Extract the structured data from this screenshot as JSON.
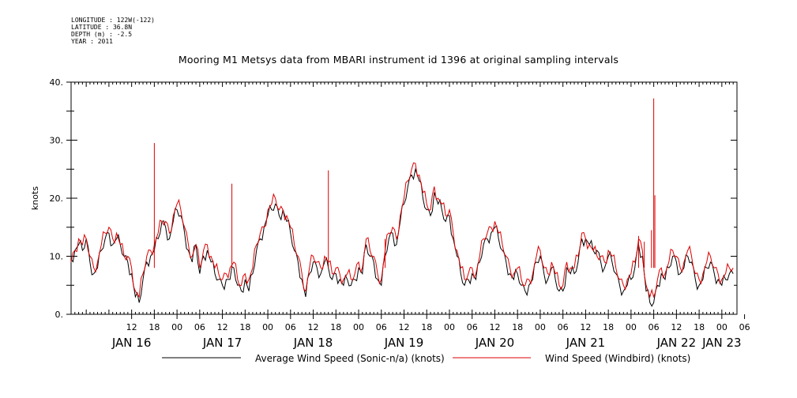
{
  "header": {
    "longitude": "LONGITUDE : 122W(-122)",
    "latitude": "LATITUDE : 36.8N",
    "depth": "DEPTH (m) : -2.5",
    "year": "YEAR : 2011"
  },
  "chart_data": {
    "type": "line",
    "title": "Mooring M1 Metsys data from MBARI instrument id 1396 at original sampling intervals",
    "ylabel": "knots",
    "xlabel": "",
    "ylim": [
      0,
      40
    ],
    "yticks": [
      "0.",
      "10.",
      "20.",
      "30.",
      "40."
    ],
    "xlim_hours": [
      -4,
      172
    ],
    "x_hour_ticks": [
      {
        "h": 12,
        "label": "12"
      },
      {
        "h": 18,
        "label": "18"
      },
      {
        "h": 24,
        "label": "00"
      },
      {
        "h": 30,
        "label": "06"
      },
      {
        "h": 36,
        "label": "12"
      },
      {
        "h": 42,
        "label": "18"
      },
      {
        "h": 48,
        "label": "00"
      },
      {
        "h": 54,
        "label": "06"
      },
      {
        "h": 60,
        "label": "12"
      },
      {
        "h": 66,
        "label": "18"
      },
      {
        "h": 72,
        "label": "00"
      },
      {
        "h": 78,
        "label": "06"
      },
      {
        "h": 84,
        "label": "12"
      },
      {
        "h": 90,
        "label": "18"
      },
      {
        "h": 96,
        "label": "00"
      },
      {
        "h": 102,
        "label": "06"
      },
      {
        "h": 108,
        "label": "12"
      },
      {
        "h": 114,
        "label": "18"
      },
      {
        "h": 120,
        "label": "00"
      },
      {
        "h": 126,
        "label": "06"
      },
      {
        "h": 132,
        "label": "12"
      },
      {
        "h": 138,
        "label": "18"
      },
      {
        "h": 144,
        "label": "00"
      },
      {
        "h": 150,
        "label": "06"
      },
      {
        "h": 156,
        "label": "12"
      },
      {
        "h": 162,
        "label": "18"
      },
      {
        "h": 168,
        "label": "00"
      },
      {
        "h": 174,
        "label": "06"
      }
    ],
    "day_labels": [
      {
        "h": 12,
        "label": "JAN 16"
      },
      {
        "h": 36,
        "label": "JAN 17"
      },
      {
        "h": 60,
        "label": "JAN 18"
      },
      {
        "h": 84,
        "label": "JAN 19"
      },
      {
        "h": 108,
        "label": "JAN 20"
      },
      {
        "h": 132,
        "label": "JAN 21"
      },
      {
        "h": 156,
        "label": "JAN 22"
      },
      {
        "h": 168,
        "label": "JAN 23"
      }
    ],
    "series": [
      {
        "name": "Average Wind Speed (Sonic-n/a) (knots)",
        "color": "#000000",
        "x": [
          -4,
          -3,
          -2,
          -1,
          0,
          1,
          2,
          3,
          4,
          5,
          6,
          7,
          8,
          9,
          10,
          11,
          12,
          13,
          14,
          15,
          16,
          17,
          18,
          19,
          20,
          21,
          22,
          23,
          24,
          25,
          26,
          27,
          28,
          29,
          30,
          31,
          32,
          33,
          34,
          35,
          36,
          37,
          38,
          39,
          40,
          41,
          42,
          43,
          44,
          45,
          46,
          47,
          48,
          49,
          50,
          51,
          52,
          53,
          54,
          55,
          56,
          57,
          58,
          59,
          60,
          61,
          62,
          63,
          64,
          65,
          66,
          67,
          68,
          69,
          70,
          71,
          72,
          73,
          74,
          75,
          76,
          77,
          78,
          79,
          80,
          81,
          82,
          83,
          84,
          85,
          86,
          87,
          88,
          89,
          90,
          91,
          92,
          93,
          94,
          95,
          96,
          97,
          98,
          99,
          100,
          101,
          102,
          103,
          104,
          105,
          106,
          107,
          108,
          109,
          110,
          111,
          112,
          113,
          114,
          115,
          116,
          117,
          118,
          119,
          120,
          121,
          122,
          123,
          124,
          125,
          126,
          127,
          128,
          129,
          130,
          131,
          132,
          133,
          134,
          135,
          136,
          137,
          138,
          139,
          140,
          141,
          142,
          143,
          144,
          145,
          146,
          147,
          148,
          149,
          150,
          151,
          152,
          153,
          154,
          155,
          156,
          157,
          158,
          159,
          160,
          161,
          162,
          163,
          164,
          165,
          166,
          167,
          168,
          169,
          170,
          171
        ],
        "y": [
          9.5,
          11,
          12,
          11,
          13,
          9,
          7,
          8,
          11,
          13,
          14,
          12,
          13,
          12,
          10,
          9,
          7,
          3,
          2,
          6,
          9,
          10,
          11,
          13,
          16,
          15,
          13,
          16,
          18,
          17,
          14,
          11,
          9,
          12,
          7,
          10,
          11,
          9,
          7,
          6,
          5,
          6,
          6,
          8,
          5,
          4,
          6,
          4,
          7,
          11,
          13,
          15,
          17,
          18,
          19,
          17,
          18,
          16,
          14,
          11,
          9,
          6,
          3,
          7,
          9,
          8,
          7,
          9,
          8,
          6,
          7,
          6,
          5,
          6,
          5,
          6,
          8,
          7,
          12,
          10,
          9,
          6,
          5,
          10,
          13,
          14,
          12,
          16,
          19,
          22,
          24,
          25,
          23,
          20,
          18,
          17,
          21,
          19,
          18,
          16,
          17,
          13,
          10,
          7,
          5,
          6,
          7,
          6,
          9,
          12,
          13,
          14,
          15,
          13,
          11,
          9,
          7,
          6,
          7,
          5,
          4,
          5,
          6,
          9,
          10,
          7,
          6,
          8,
          6,
          4,
          4,
          8,
          7,
          7,
          9,
          13,
          13,
          12,
          11,
          11,
          9,
          8,
          10,
          9,
          7,
          5,
          4,
          5,
          6,
          8,
          12,
          10,
          4,
          2,
          2,
          5,
          7,
          6,
          8,
          10,
          9,
          7,
          8,
          10,
          9,
          6,
          5,
          6,
          8,
          9,
          7,
          6,
          5,
          6,
          7,
          7
        ],
        "spikes": []
      },
      {
        "name": "Wind Speed (Windbird) (knots)",
        "color": "#dd0000",
        "x": [
          -4,
          -3,
          -2,
          -1,
          0,
          1,
          2,
          3,
          4,
          5,
          6,
          7,
          8,
          9,
          10,
          11,
          12,
          13,
          14,
          15,
          16,
          17,
          18,
          19,
          20,
          21,
          22,
          23,
          24,
          25,
          26,
          27,
          28,
          29,
          30,
          31,
          32,
          33,
          34,
          35,
          36,
          37,
          38,
          39,
          40,
          41,
          42,
          43,
          44,
          45,
          46,
          47,
          48,
          49,
          50,
          51,
          52,
          53,
          54,
          55,
          56,
          57,
          58,
          59,
          60,
          61,
          62,
          63,
          64,
          65,
          66,
          67,
          68,
          69,
          70,
          71,
          72,
          73,
          74,
          75,
          76,
          77,
          78,
          79,
          80,
          81,
          82,
          83,
          84,
          85,
          86,
          87,
          88,
          89,
          90,
          91,
          92,
          93,
          94,
          95,
          96,
          97,
          98,
          99,
          100,
          101,
          102,
          103,
          104,
          105,
          106,
          107,
          108,
          109,
          110,
          111,
          112,
          113,
          114,
          115,
          116,
          117,
          118,
          119,
          120,
          121,
          122,
          123,
          124,
          125,
          126,
          127,
          128,
          129,
          130,
          131,
          132,
          133,
          134,
          135,
          136,
          137,
          138,
          139,
          140,
          141,
          142,
          143,
          144,
          145,
          146,
          147,
          148,
          149,
          150,
          151,
          152,
          153,
          154,
          155,
          156,
          157,
          158,
          159,
          160,
          161,
          162,
          163,
          164,
          165,
          166,
          167,
          168,
          169,
          170,
          171
        ],
        "y": [
          9,
          11,
          13,
          12,
          13,
          10,
          8,
          9,
          12,
          14,
          15,
          13,
          14,
          12,
          10,
          10,
          8,
          4,
          3,
          7,
          10,
          11,
          12,
          14,
          16,
          16,
          14,
          17,
          19,
          18,
          15,
          12,
          10,
          12,
          8,
          11,
          12,
          10,
          8,
          7,
          6,
          7,
          8,
          9,
          6,
          5,
          7,
          6,
          8,
          12,
          14,
          15,
          18,
          19,
          20,
          18,
          18,
          17,
          15,
          12,
          10,
          7,
          4,
          8,
          10,
          9,
          8,
          10,
          9,
          7,
          8,
          7,
          6,
          7,
          6,
          7,
          9,
          8,
          13,
          11,
          10,
          7,
          6,
          11,
          14,
          15,
          13,
          17,
          20,
          23,
          25,
          26,
          24,
          21,
          19,
          18,
          22,
          20,
          19,
          17,
          18,
          14,
          11,
          8,
          6,
          7,
          8,
          7,
          10,
          13,
          14,
          15,
          16,
          14,
          12,
          10,
          8,
          7,
          8,
          6,
          5,
          6,
          7,
          10,
          11,
          8,
          7,
          9,
          7,
          5,
          5,
          9,
          8,
          8,
          10,
          14,
          13,
          12,
          11,
          10,
          10,
          9,
          11,
          10,
          8,
          6,
          5,
          6,
          7,
          9,
          13,
          11,
          5,
          3,
          3,
          6,
          8,
          7,
          9,
          11,
          10,
          8,
          9,
          11,
          10,
          7,
          6,
          7,
          9,
          10,
          8,
          7,
          6,
          7,
          8,
          8
        ],
        "spikes": [
          {
            "x": 18,
            "y": 29.5
          },
          {
            "x": 38.5,
            "y": 22.5
          },
          {
            "x": 64,
            "y": 24.8
          },
          {
            "x": 150,
            "y": 37.2
          },
          {
            "x": 150.3,
            "y": 20.5
          },
          {
            "x": 149.4,
            "y": 14.5
          },
          {
            "x": 146,
            "y": 13.5
          },
          {
            "x": 147.5,
            "y": 12.5
          },
          {
            "x": 79,
            "y": 13
          }
        ]
      }
    ],
    "legend": [
      {
        "label": "Average Wind Speed (Sonic-n/a) (knots)",
        "color": "#000000"
      },
      {
        "label": "Wind Speed (Windbird) (knots)",
        "color": "#dd0000"
      }
    ]
  }
}
